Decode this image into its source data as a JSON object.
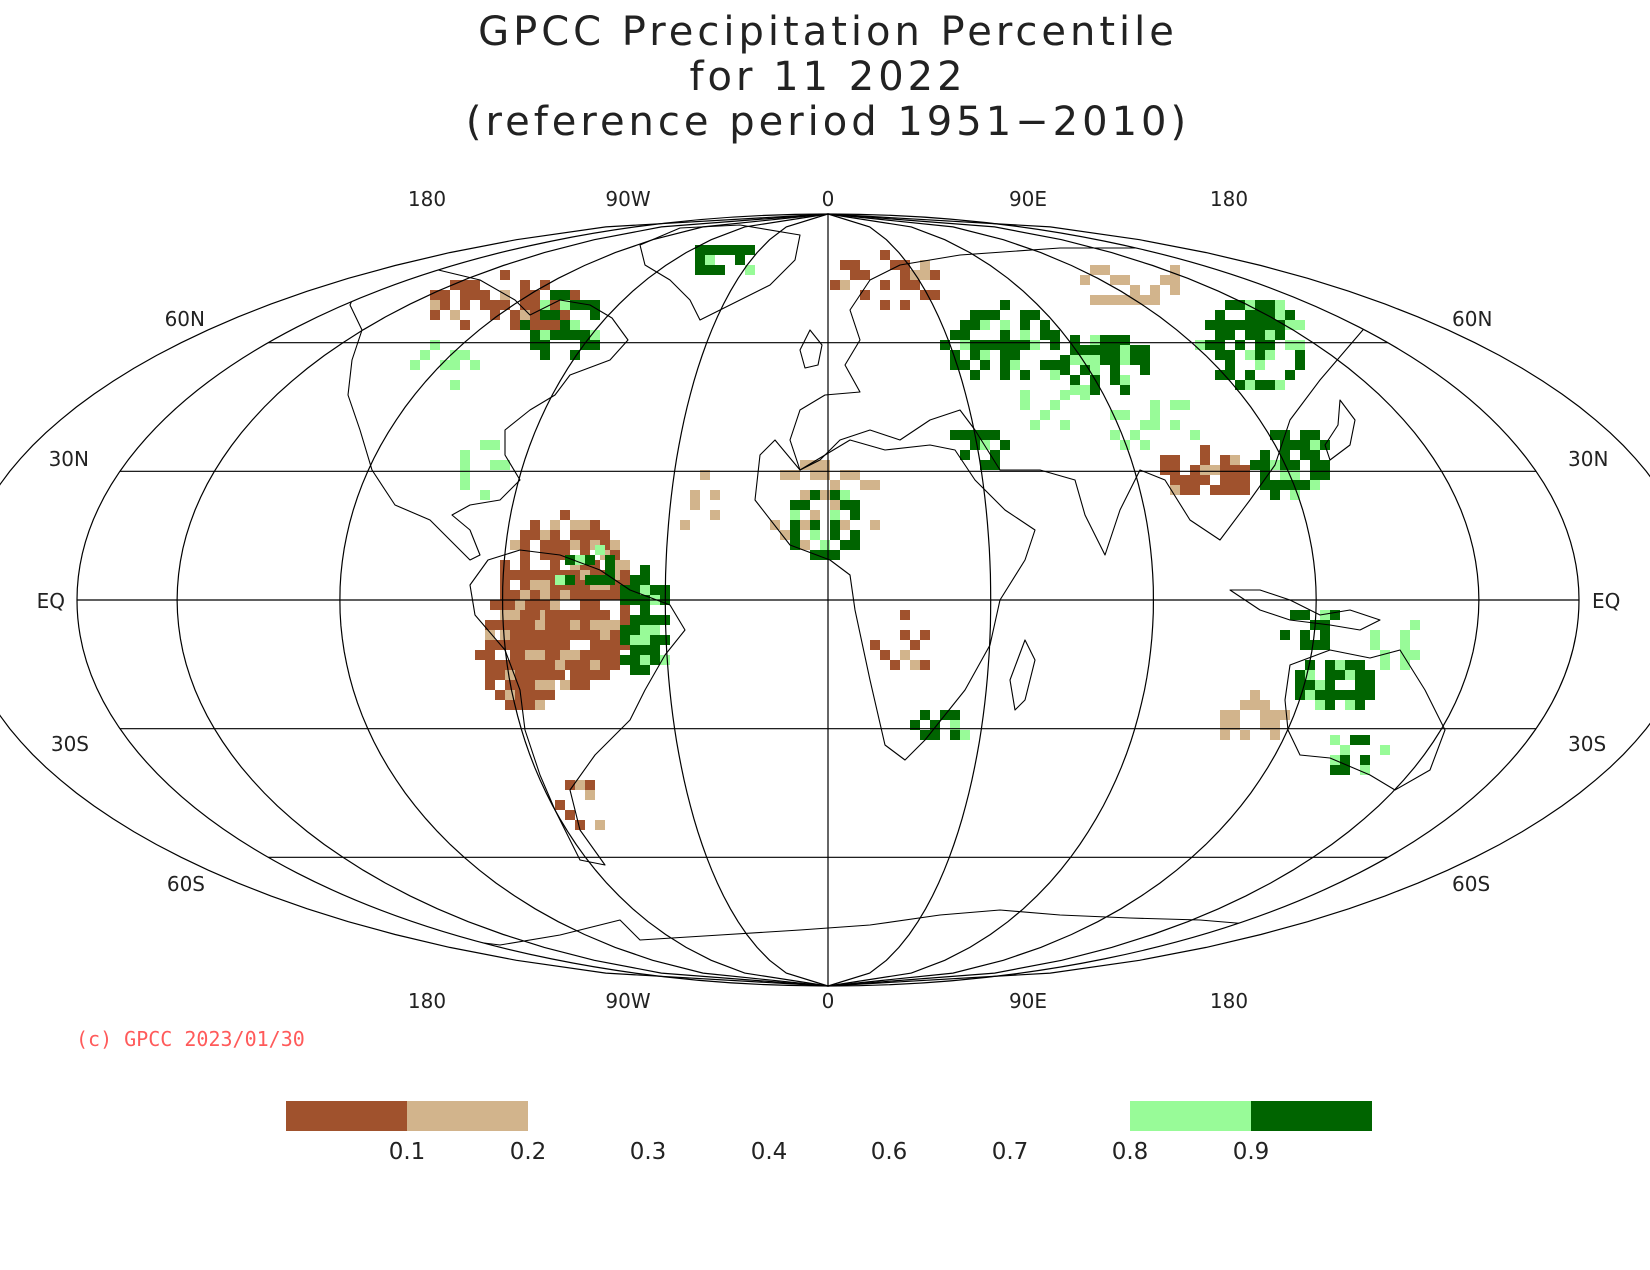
{
  "title": {
    "line1": "GPCC Precipitation Percentile",
    "line2": "for 11 2022",
    "line3": "(reference period 1951−2010)"
  },
  "axes": {
    "top_lon": [
      "180",
      "90W",
      "0",
      "90E",
      "180"
    ],
    "bottom_lon": [
      "180",
      "90W",
      "0",
      "90E",
      "180"
    ],
    "left_lat": [
      "60N",
      "30N",
      "EQ",
      "30S",
      "60S"
    ],
    "right_lat": [
      "60N",
      "30N",
      "EQ",
      "30S",
      "60S"
    ]
  },
  "credit": {
    "text": "(c) GPCC 2023/01/30",
    "color": "#ff5a5a"
  },
  "legend": {
    "colors": {
      "very_dry": "#a0522d",
      "dry": "#d2b48c",
      "wet": "#98fb98",
      "very_wet": "#006400"
    },
    "labels": [
      "0.1",
      "0.2",
      "0.3",
      "0.4",
      "0.6",
      "0.7",
      "0.8",
      "0.9"
    ]
  }
}
